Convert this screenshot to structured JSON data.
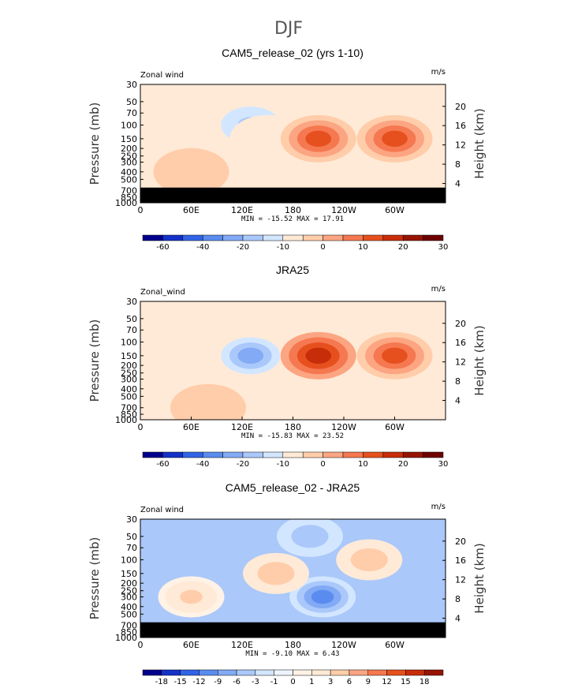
{
  "figure": {
    "title": "DJF"
  },
  "chart_data": [
    {
      "type": "heatmap",
      "title": "CAM5_release_02 (yrs 1-10)",
      "variable": "Zonal wind",
      "units": "m/s",
      "xlabel": "",
      "ylabel": "Pressure (mb)",
      "ylabel_right": "Height (km)",
      "x_ticks": [
        "0",
        "60E",
        "120E",
        "180",
        "120W",
        "60W"
      ],
      "y_ticks_pressure": [
        "30",
        "50",
        "70",
        "100",
        "150",
        "200",
        "250",
        "300",
        "400",
        "500",
        "700",
        "850",
        "1000"
      ],
      "y_ticks_height": [
        "20",
        "16",
        "12",
        "8",
        "4"
      ],
      "stats": {
        "min_label": "MIN =",
        "min": "-15.52",
        "max_label": "MAX =",
        "max": "17.91"
      },
      "colorbar_labels": [
        "-60",
        "-40",
        "-20",
        "-10",
        "0",
        "10",
        "20",
        "30"
      ],
      "surface_mask": true,
      "features": [
        {
          "x": 130,
          "p": 100,
          "value": -12
        },
        {
          "x": 150,
          "p": 150,
          "value": -5
        },
        {
          "x": 210,
          "p": 150,
          "value": 17.91
        },
        {
          "x": 300,
          "p": 150,
          "value": 15
        },
        {
          "x": 60,
          "p": 400,
          "value": 4
        }
      ]
    },
    {
      "type": "heatmap",
      "title": "JRA25",
      "variable": "Zonal_wind",
      "units": "m/s",
      "xlabel": "",
      "ylabel": "Pressure (mb)",
      "ylabel_right": "Height (km)",
      "x_ticks": [
        "0",
        "60E",
        "120E",
        "180",
        "120W",
        "60W"
      ],
      "y_ticks_pressure": [
        "30",
        "50",
        "70",
        "100",
        "150",
        "200",
        "250",
        "300",
        "400",
        "500",
        "700",
        "850",
        "1000"
      ],
      "y_ticks_height": [
        "20",
        "16",
        "12",
        "8",
        "4"
      ],
      "stats": {
        "min_label": "MIN =",
        "min": "-15.83",
        "max_label": "MAX =",
        "max": "23.52"
      },
      "colorbar_labels": [
        "-60",
        "-40",
        "-20",
        "-10",
        "0",
        "10",
        "20",
        "30"
      ],
      "surface_mask": false,
      "features": [
        {
          "x": 130,
          "p": 150,
          "value": -15.83
        },
        {
          "x": 210,
          "p": 150,
          "value": 23.52
        },
        {
          "x": 300,
          "p": 150,
          "value": 18
        },
        {
          "x": 80,
          "p": 700,
          "value": 3
        }
      ]
    },
    {
      "type": "heatmap",
      "title": "CAM5_release_02 - JRA25",
      "variable": "Zonal wind",
      "units": "m/s",
      "xlabel": "",
      "ylabel": "Pressure (mb)",
      "ylabel_right": "Height (km)",
      "x_ticks": [
        "0",
        "60E",
        "120E",
        "180",
        "120W",
        "60W"
      ],
      "y_ticks_pressure": [
        "30",
        "50",
        "70",
        "100",
        "150",
        "200",
        "250",
        "300",
        "400",
        "500",
        "700",
        "850",
        "1000"
      ],
      "y_ticks_height": [
        "20",
        "16",
        "12",
        "8",
        "4"
      ],
      "stats": {
        "min_label": "MIN =",
        "min": "-9.10",
        "max_label": "MAX =",
        "max": "6.43"
      },
      "colorbar_labels": [
        "-18",
        "-15",
        "-12",
        "-9",
        "-6",
        "-3",
        "-1",
        "0",
        "1",
        "3",
        "6",
        "9",
        "12",
        "15",
        "18"
      ],
      "surface_mask": true,
      "features": [
        {
          "x": 215,
          "p": 300,
          "value": -9.1
        },
        {
          "x": 160,
          "p": 150,
          "value": 5
        },
        {
          "x": 270,
          "p": 100,
          "value": 4
        },
        {
          "x": 60,
          "p": 300,
          "value": 3
        },
        {
          "x": 200,
          "p": 50,
          "value": -6
        }
      ]
    }
  ],
  "colorbar_colors": {
    "abs": [
      "#00008c",
      "#1432c8",
      "#3264e6",
      "#5a8cf0",
      "#82aaf5",
      "#aac8fa",
      "#d2e6ff",
      "#ffead7",
      "#ffcdaa",
      "#fca582",
      "#f57850",
      "#e6501e",
      "#c82d0a",
      "#961400",
      "#6e0000"
    ],
    "diff": [
      "#00008c",
      "#1432c8",
      "#3264e6",
      "#5a8cf0",
      "#82aaf5",
      "#aac8fa",
      "#d2e6ff",
      "#eef4ff",
      "#fff2e6",
      "#ffead7",
      "#ffcdaa",
      "#fca582",
      "#f57850",
      "#e6501e",
      "#c82d0a",
      "#961400"
    ]
  }
}
